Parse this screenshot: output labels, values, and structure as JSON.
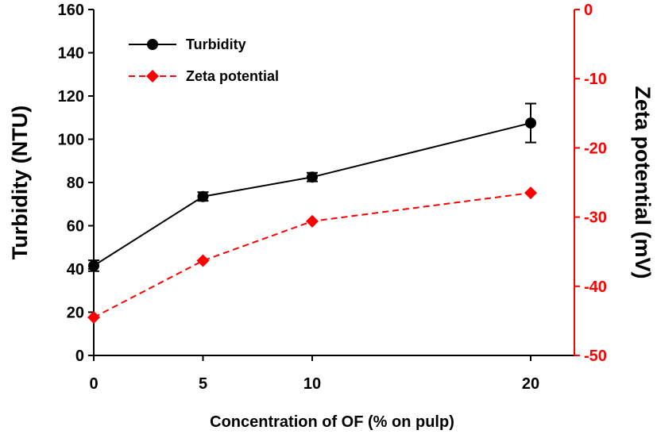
{
  "chart_data": {
    "type": "line",
    "xlabel": "Concentration of OF (% on pulp)",
    "x_ticks": [
      0,
      5,
      10,
      20
    ],
    "xlim": [
      0,
      22
    ],
    "y_left": {
      "label": "Turbidity (NTU)",
      "lim": [
        0,
        160
      ],
      "ticks": [
        0,
        20,
        40,
        60,
        80,
        100,
        120,
        140,
        160
      ],
      "color": "#000000"
    },
    "y_right": {
      "label": "Zeta potential (mV)",
      "lim": [
        -50,
        0
      ],
      "ticks": [
        0,
        -10,
        -20,
        -30,
        -40,
        -50
      ],
      "color": "#ff0000"
    },
    "series": [
      {
        "name": "Turbidity",
        "axis": "left",
        "color": "#000000",
        "marker": "circle",
        "line_style": "solid",
        "x": [
          0,
          5,
          10,
          20
        ],
        "y": [
          41.5,
          73.5,
          82.5,
          107.5
        ],
        "error": [
          2.5,
          2,
          2,
          9
        ]
      },
      {
        "name": "Zeta potential",
        "axis": "right",
        "color": "#ff0000",
        "marker": "diamond",
        "line_style": "dashed",
        "x": [
          0,
          5,
          10,
          20
        ],
        "y": [
          -44.5,
          -36.3,
          -30.6,
          -26.5
        ]
      }
    ],
    "legend": {
      "position": "top-left"
    },
    "grid": false
  }
}
